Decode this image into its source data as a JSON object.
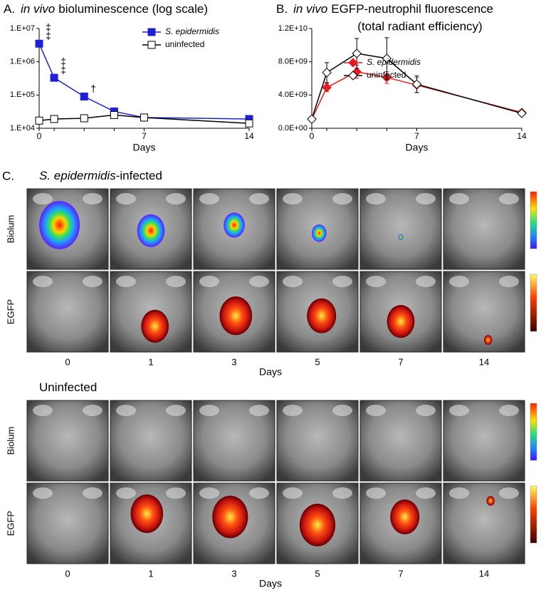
{
  "chart_data": [
    {
      "type": "line",
      "panel_label": "A.",
      "title_italic": "in vivo",
      "title": "bioluminescence (log scale)",
      "x": [
        0,
        1,
        3,
        5,
        7,
        14
      ],
      "xlabel": "Days",
      "xlim": [
        0,
        14
      ],
      "xticks": [
        0,
        7,
        14
      ],
      "log_y": true,
      "ylim": [
        10000,
        10000000
      ],
      "yticks": [
        {
          "value": 10000,
          "label": "1.E+04"
        },
        {
          "value": 100000,
          "label": "1.E+05"
        },
        {
          "value": 1000000,
          "label": "1.E+06"
        },
        {
          "value": 10000000,
          "label": "1.E+07"
        }
      ],
      "legend": "upper right",
      "series": [
        {
          "name": "S. epidermidis",
          "italic": true,
          "color": "#1f1fd6",
          "fill": "#1f1fd6",
          "marker": "square",
          "values": [
            3500000,
            330000,
            90000,
            32000,
            21000,
            19000
          ]
        },
        {
          "name": "uninfected",
          "italic": false,
          "color": "#000000",
          "fill": "#ffffff",
          "marker": "square",
          "values": [
            17000,
            19000,
            20000,
            25000,
            21000,
            14000
          ]
        }
      ],
      "annotations": [
        {
          "text": "‡",
          "x": 0
        },
        {
          "text": "‡",
          "x": 0
        },
        {
          "text": "‡",
          "x": 1
        },
        {
          "text": "‡",
          "x": 1
        },
        {
          "text": "†",
          "x": 3
        }
      ]
    },
    {
      "type": "line",
      "panel_label": "B.",
      "title_italic": "in vivo",
      "title": "EGFP-neutrophil fluorescence",
      "subtitle": "(total radiant efficiency)",
      "x": [
        0,
        1,
        3,
        5,
        7,
        14
      ],
      "xlabel": "Days",
      "xlim": [
        0,
        14
      ],
      "xticks": [
        0,
        7,
        14
      ],
      "log_y": false,
      "ylim": [
        0,
        12000000000
      ],
      "yticks": [
        {
          "value": 0,
          "label": "0.0E+00"
        },
        {
          "value": 4000000000,
          "label": "4.0E+09"
        },
        {
          "value": 8000000000,
          "label": "8.0E+09"
        },
        {
          "value": 12000000000,
          "label": "1.2E+10"
        }
      ],
      "legend": "center right",
      "series": [
        {
          "name": "S. epidermidis",
          "italic": true,
          "color": "#e8191c",
          "fill": "#e8191c",
          "marker": "diamond",
          "values": [
            1100000000,
            4900000000,
            6800000000,
            6100000000,
            5200000000,
            1900000000
          ],
          "errors": [
            200000000,
            500000000,
            800000000,
            700000000,
            900000000,
            200000000
          ]
        },
        {
          "name": "uninfected",
          "italic": false,
          "color": "#000000",
          "fill": "#ffffff",
          "marker": "diamond",
          "values": [
            1100000000,
            6700000000,
            9000000000,
            8400000000,
            5300000000,
            1800000000
          ],
          "errors": [
            200000000,
            1200000000,
            1800000000,
            2500000000,
            1000000000,
            200000000
          ]
        }
      ]
    }
  ],
  "panel_c": {
    "label": "C.",
    "groups": [
      {
        "title_italic": "S. epidermidis",
        "title": "-infected",
        "rows": [
          "Biolum",
          "EGFP"
        ],
        "days": [
          "0",
          "1",
          "3",
          "5",
          "7",
          "14"
        ],
        "xlabel": "Days"
      },
      {
        "title_italic": "",
        "title": "Uninfected",
        "rows": [
          "Biolum",
          "EGFP"
        ],
        "days": [
          "0",
          "1",
          "3",
          "5",
          "7",
          "14"
        ],
        "xlabel": "Days"
      }
    ]
  }
}
